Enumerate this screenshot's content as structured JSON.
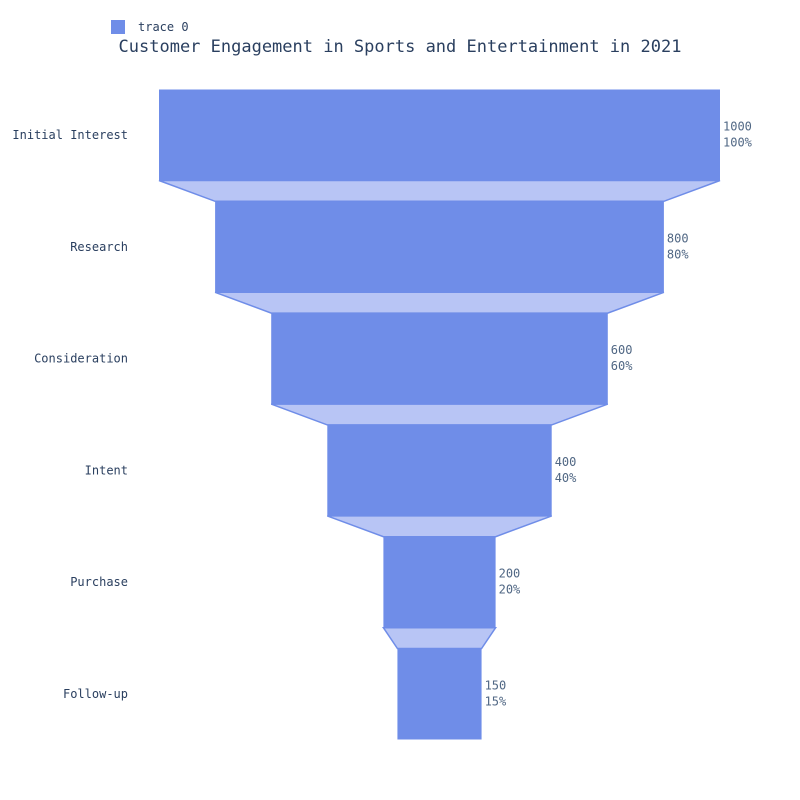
{
  "chart_data": {
    "type": "funnel",
    "title": "Customer Engagement in Sports and Entertainment in 2021",
    "legend": {
      "position": "top-left",
      "entries": [
        "trace 0"
      ]
    },
    "series": [
      {
        "name": "trace 0",
        "color": "#6f8de8",
        "connector_color": "#b8c5f5"
      }
    ],
    "categories": [
      "Initial Interest",
      "Research",
      "Consideration",
      "Intent",
      "Purchase",
      "Follow-up"
    ],
    "values": [
      1000,
      800,
      600,
      400,
      200,
      150
    ],
    "percent_labels": [
      "100%",
      "80%",
      "60%",
      "40%",
      "20%",
      "15%"
    ],
    "value_labels": [
      "1000",
      "800",
      "600",
      "400",
      "200",
      "150"
    ]
  }
}
